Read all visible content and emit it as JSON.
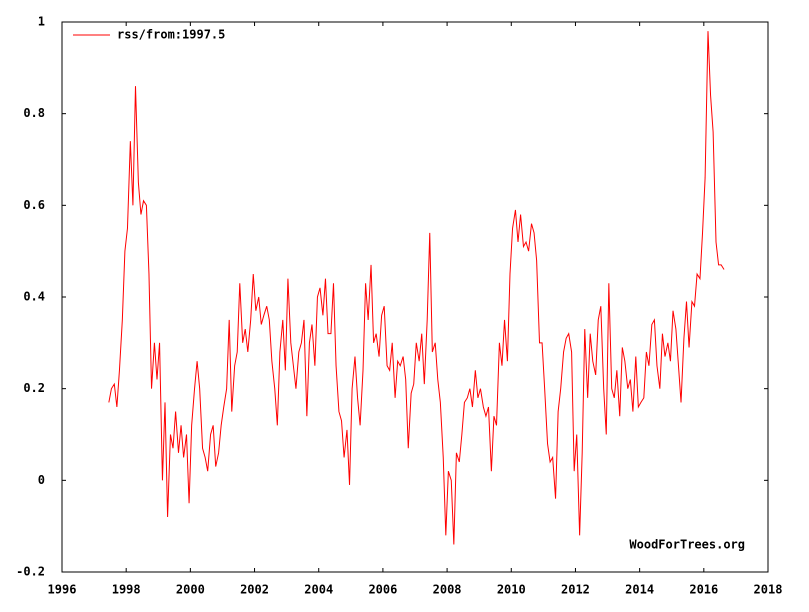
{
  "chart_data": {
    "type": "line",
    "annotation": "WoodForTrees.org",
    "x": [
      1997.46,
      1997.54,
      1997.63,
      1997.71,
      1997.79,
      1997.88,
      1997.96,
      1998.04,
      1998.13,
      1998.21,
      1998.29,
      1998.38,
      1998.46,
      1998.54,
      1998.63,
      1998.71,
      1998.79,
      1998.88,
      1998.96,
      1999.04,
      1999.13,
      1999.21,
      1999.29,
      1999.38,
      1999.46,
      1999.54,
      1999.63,
      1999.71,
      1999.79,
      1999.88,
      1999.96,
      2000.04,
      2000.13,
      2000.21,
      2000.29,
      2000.38,
      2000.46,
      2000.54,
      2000.63,
      2000.71,
      2000.79,
      2000.88,
      2000.96,
      2001.04,
      2001.13,
      2001.21,
      2001.29,
      2001.38,
      2001.46,
      2001.54,
      2001.63,
      2001.71,
      2001.79,
      2001.88,
      2001.96,
      2002.04,
      2002.13,
      2002.21,
      2002.29,
      2002.38,
      2002.46,
      2002.54,
      2002.63,
      2002.71,
      2002.79,
      2002.88,
      2002.96,
      2003.04,
      2003.13,
      2003.21,
      2003.29,
      2003.38,
      2003.46,
      2003.54,
      2003.63,
      2003.71,
      2003.79,
      2003.88,
      2003.96,
      2004.04,
      2004.13,
      2004.21,
      2004.29,
      2004.38,
      2004.46,
      2004.54,
      2004.63,
      2004.71,
      2004.79,
      2004.88,
      2004.96,
      2005.04,
      2005.13,
      2005.21,
      2005.29,
      2005.38,
      2005.46,
      2005.54,
      2005.63,
      2005.71,
      2005.79,
      2005.88,
      2005.96,
      2006.04,
      2006.13,
      2006.21,
      2006.29,
      2006.38,
      2006.46,
      2006.54,
      2006.63,
      2006.71,
      2006.79,
      2006.88,
      2006.96,
      2007.04,
      2007.13,
      2007.21,
      2007.29,
      2007.38,
      2007.46,
      2007.54,
      2007.63,
      2007.71,
      2007.79,
      2007.88,
      2007.96,
      2008.04,
      2008.13,
      2008.21,
      2008.29,
      2008.38,
      2008.46,
      2008.54,
      2008.63,
      2008.71,
      2008.79,
      2008.88,
      2008.96,
      2009.04,
      2009.13,
      2009.21,
      2009.29,
      2009.38,
      2009.46,
      2009.54,
      2009.63,
      2009.71,
      2009.79,
      2009.88,
      2009.96,
      2010.04,
      2010.13,
      2010.21,
      2010.29,
      2010.38,
      2010.46,
      2010.54,
      2010.63,
      2010.71,
      2010.79,
      2010.88,
      2010.96,
      2011.04,
      2011.13,
      2011.21,
      2011.29,
      2011.38,
      2011.46,
      2011.54,
      2011.63,
      2011.71,
      2011.79,
      2011.88,
      2011.96,
      2012.04,
      2012.13,
      2012.21,
      2012.29,
      2012.38,
      2012.46,
      2012.54,
      2012.63,
      2012.71,
      2012.79,
      2012.88,
      2012.96,
      2013.04,
      2013.13,
      2013.21,
      2013.29,
      2013.38,
      2013.46,
      2013.54,
      2013.63,
      2013.71,
      2013.79,
      2013.88,
      2013.96,
      2014.04,
      2014.13,
      2014.21,
      2014.29,
      2014.38,
      2014.46,
      2014.54,
      2014.63,
      2014.71,
      2014.79,
      2014.88,
      2014.96,
      2015.04,
      2015.13,
      2015.21,
      2015.29,
      2015.38,
      2015.46,
      2015.54,
      2015.63,
      2015.71,
      2015.79,
      2015.88,
      2015.96,
      2016.04,
      2016.13,
      2016.21,
      2016.29,
      2016.38,
      2016.46,
      2016.54,
      2016.63
    ],
    "series": [
      {
        "name": "rss/from:1997.5",
        "color": "#ff0000",
        "values": [
          0.17,
          0.2,
          0.21,
          0.16,
          0.24,
          0.35,
          0.5,
          0.55,
          0.74,
          0.6,
          0.86,
          0.65,
          0.58,
          0.61,
          0.6,
          0.45,
          0.2,
          0.3,
          0.22,
          0.3,
          0.0,
          0.17,
          -0.08,
          0.1,
          0.07,
          0.15,
          0.06,
          0.12,
          0.05,
          0.1,
          -0.05,
          0.12,
          0.2,
          0.26,
          0.2,
          0.07,
          0.05,
          0.02,
          0.1,
          0.12,
          0.03,
          0.06,
          0.12,
          0.16,
          0.2,
          0.35,
          0.15,
          0.25,
          0.28,
          0.43,
          0.3,
          0.33,
          0.28,
          0.35,
          0.45,
          0.37,
          0.4,
          0.34,
          0.36,
          0.38,
          0.35,
          0.26,
          0.2,
          0.12,
          0.28,
          0.35,
          0.24,
          0.44,
          0.3,
          0.25,
          0.2,
          0.28,
          0.3,
          0.35,
          0.14,
          0.3,
          0.34,
          0.25,
          0.4,
          0.42,
          0.36,
          0.44,
          0.32,
          0.32,
          0.43,
          0.25,
          0.15,
          0.13,
          0.05,
          0.11,
          -0.01,
          0.2,
          0.27,
          0.18,
          0.12,
          0.24,
          0.43,
          0.35,
          0.47,
          0.3,
          0.32,
          0.27,
          0.36,
          0.38,
          0.25,
          0.24,
          0.3,
          0.18,
          0.26,
          0.25,
          0.27,
          0.22,
          0.07,
          0.19,
          0.21,
          0.3,
          0.26,
          0.32,
          0.21,
          0.35,
          0.54,
          0.28,
          0.3,
          0.22,
          0.17,
          0.05,
          -0.12,
          0.02,
          0.0,
          -0.14,
          0.06,
          0.04,
          0.1,
          0.17,
          0.18,
          0.2,
          0.16,
          0.24,
          0.18,
          0.2,
          0.16,
          0.14,
          0.16,
          0.02,
          0.14,
          0.12,
          0.3,
          0.25,
          0.35,
          0.26,
          0.45,
          0.55,
          0.59,
          0.52,
          0.58,
          0.51,
          0.52,
          0.5,
          0.56,
          0.54,
          0.48,
          0.3,
          0.3,
          0.2,
          0.08,
          0.04,
          0.05,
          -0.04,
          0.15,
          0.2,
          0.28,
          0.31,
          0.32,
          0.28,
          0.02,
          0.1,
          -0.12,
          0.06,
          0.33,
          0.18,
          0.32,
          0.26,
          0.23,
          0.35,
          0.38,
          0.2,
          0.1,
          0.43,
          0.2,
          0.18,
          0.24,
          0.14,
          0.29,
          0.26,
          0.2,
          0.22,
          0.15,
          0.27,
          0.16,
          0.17,
          0.18,
          0.28,
          0.25,
          0.34,
          0.35,
          0.25,
          0.2,
          0.32,
          0.27,
          0.3,
          0.26,
          0.37,
          0.33,
          0.25,
          0.17,
          0.31,
          0.39,
          0.29,
          0.39,
          0.38,
          0.45,
          0.44,
          0.54,
          0.66,
          0.98,
          0.84,
          0.76,
          0.52,
          0.47,
          0.47,
          0.46
        ]
      }
    ],
    "xlim": [
      1996,
      2018
    ],
    "xticks": [
      1996,
      1998,
      2000,
      2002,
      2004,
      2006,
      2008,
      2010,
      2012,
      2014,
      2016,
      2018
    ],
    "ylim": [
      -0.2,
      1
    ],
    "yticks": [
      -0.2,
      0,
      0.2,
      0.4,
      0.6,
      0.8,
      1
    ],
    "legend": "top-left",
    "grid": false
  }
}
